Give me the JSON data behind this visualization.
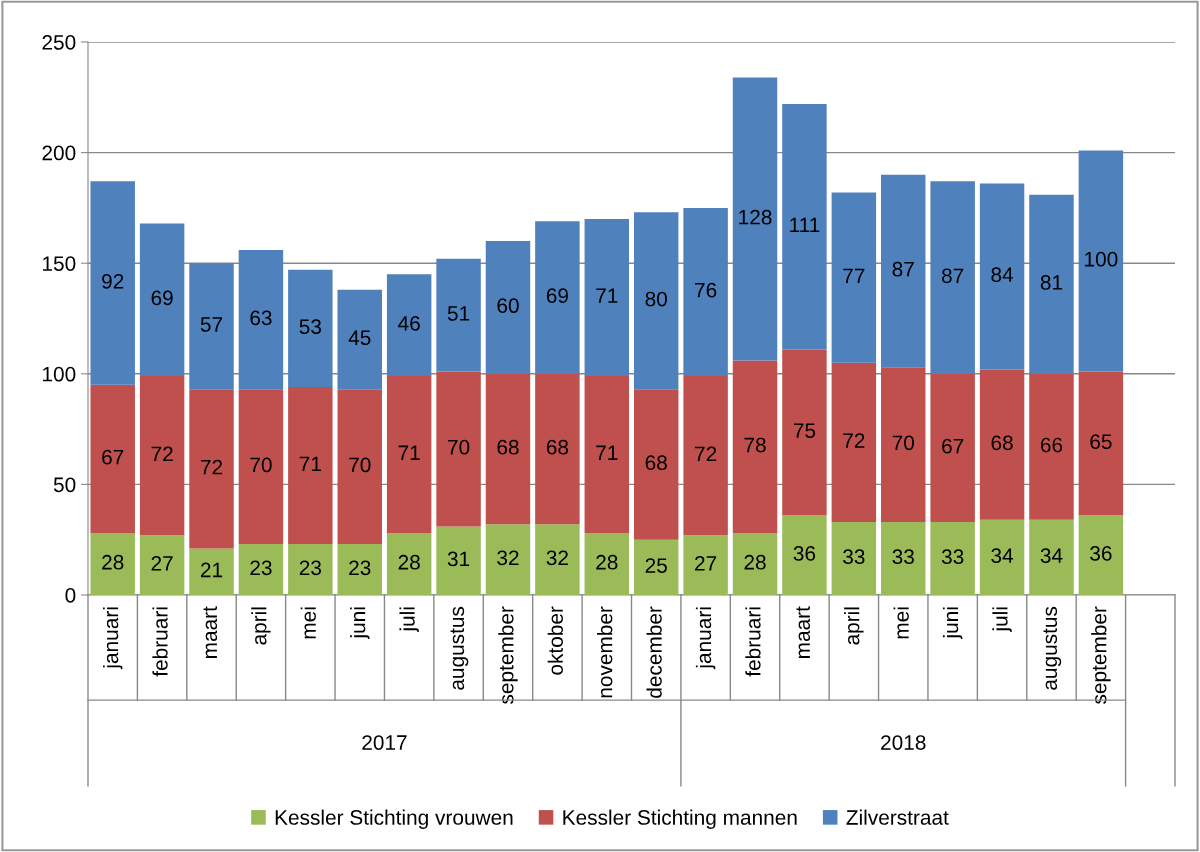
{
  "chart_data": {
    "type": "bar",
    "stacked": true,
    "categories": [
      "januari",
      "februari",
      "maart",
      "april",
      "mei",
      "juni",
      "juli",
      "augustus",
      "september",
      "oktober",
      "november",
      "december",
      "januari",
      "februari",
      "maart",
      "april",
      "mei",
      "juni",
      "juli",
      "augustus",
      "september",
      null
    ],
    "series": [
      {
        "name": "Kessler Stichting vrouwen",
        "color": "#9bbb59",
        "values": [
          28,
          27,
          21,
          23,
          23,
          23,
          28,
          31,
          32,
          32,
          28,
          25,
          27,
          28,
          36,
          33,
          33,
          33,
          34,
          34,
          36,
          null
        ]
      },
      {
        "name": "Kessler Stichting mannen",
        "color": "#c0504d",
        "values": [
          67,
          72,
          72,
          70,
          71,
          70,
          71,
          70,
          68,
          68,
          71,
          68,
          72,
          78,
          75,
          72,
          70,
          67,
          68,
          66,
          65,
          null
        ]
      },
      {
        "name": "Zilverstraat",
        "color": "#4f81bd",
        "values": [
          92,
          69,
          57,
          63,
          53,
          45,
          46,
          51,
          60,
          69,
          71,
          80,
          76,
          128,
          111,
          77,
          87,
          87,
          84,
          81,
          100,
          null
        ]
      }
    ],
    "annotations": [
      "2017",
      "2018"
    ],
    "ylim": [
      0,
      250
    ],
    "yticks": [
      0,
      50,
      100,
      150,
      200,
      250
    ],
    "grid": "y",
    "legend": "bottom",
    "data_labels": true
  }
}
